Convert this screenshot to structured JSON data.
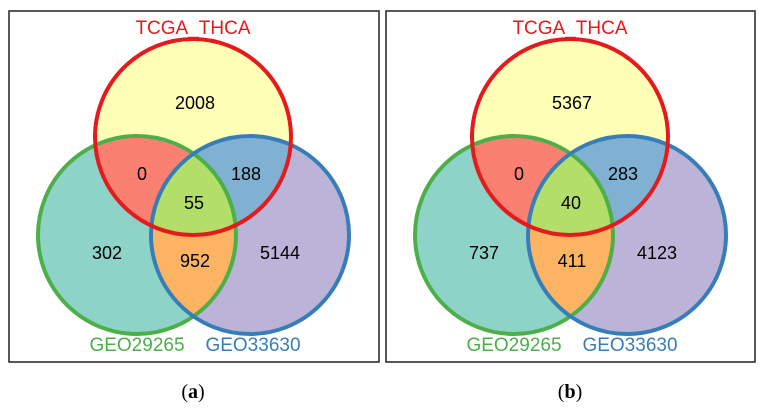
{
  "colors": {
    "set_a": "#e41a1c",
    "set_b": "#4daf4a",
    "set_c": "#377eb8",
    "only_a": "#ffffb8",
    "only_b": "#8dd3c7",
    "only_c": "#bcb4d8",
    "a_b": "#fa8072",
    "a_c": "#80b1d3",
    "b_c": "#fdb462",
    "abc": "#b3de69"
  },
  "panels": [
    {
      "caption_letter": "a",
      "sets": [
        "TCGA_THCA",
        "GEO29265",
        "GEO33630"
      ],
      "regions": {
        "only_a": "2008",
        "a_b": "0",
        "a_c": "188",
        "abc": "55",
        "only_b": "302",
        "b_c": "952",
        "only_c": "5144"
      }
    },
    {
      "caption_letter": "b",
      "sets": [
        "TCGA_THCA",
        "GEO29265",
        "GEO33630"
      ],
      "regions": {
        "only_a": "5367",
        "a_b": "0",
        "a_c": "283",
        "abc": "40",
        "only_b": "737",
        "b_c": "411",
        "only_c": "4123"
      }
    }
  ]
}
